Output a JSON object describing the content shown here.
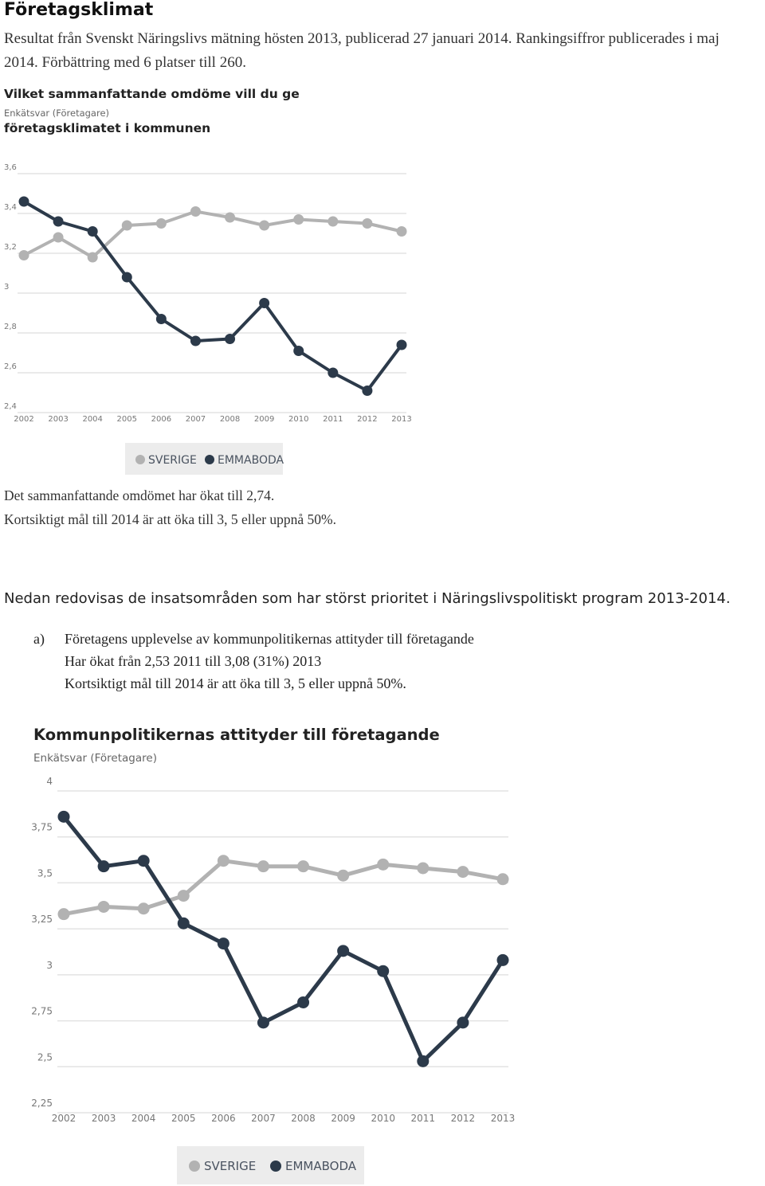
{
  "heading": "Företagsklimat",
  "intro": "Resultat från Svenskt Näringslivs mätning hösten 2013, publicerad 27 januari 2014. Rankingsiffror publicerades i maj 2014. Förbättring med 6 platser till 260.",
  "summary": {
    "line1": "Det sammanfattande omdömet har ökat till 2,74.",
    "line2": "Kortsiktigt mål till 2014 är att öka till 3, 5 eller uppnå 50%."
  },
  "priority_intro": "Nedan redovisas de insatsområden som har störst prioritet i Näringslivspolitiskt program 2013-2014.",
  "item_a": {
    "letter": "a)",
    "line1": "Företagens upplevelse av kommunpolitikernas attityder till företagande",
    "line2": "Har ökat från 2,53 2011 till 3,08 (31%) 2013",
    "line3": "Kortsiktigt mål till 2014 är att öka till 3, 5 eller uppnå 50%."
  },
  "colors": {
    "sverige": "#b2b2b2",
    "emmaboda": "#2c3a4a",
    "grid": "#e3e3e3",
    "legend_bg": "#ececec"
  },
  "chart_data": [
    {
      "type": "line",
      "title_line1": "Vilket sammanfattande omdöme vill du ge",
      "subtitle": "Enkätsvar (Företagare)",
      "title_line2": "företagsklimatet i kommunen",
      "x": [
        "2002",
        "2003",
        "2004",
        "2005",
        "2006",
        "2007",
        "2008",
        "2009",
        "2010",
        "2011",
        "2012",
        "2013"
      ],
      "ylim": [
        2.4,
        3.6
      ],
      "yticks": [
        "2,4",
        "2,6",
        "2,8",
        "3",
        "3,2",
        "3,4",
        "3,6"
      ],
      "grid": true,
      "legend": "bottom-center",
      "series": [
        {
          "name": "SVERIGE",
          "values": [
            3.19,
            3.28,
            3.18,
            3.34,
            3.35,
            3.41,
            3.38,
            3.34,
            3.37,
            3.36,
            3.35,
            3.31
          ]
        },
        {
          "name": "EMMABODA",
          "values": [
            3.46,
            3.36,
            3.31,
            3.08,
            2.87,
            2.76,
            2.77,
            2.95,
            2.71,
            2.6,
            2.51,
            2.74
          ]
        }
      ]
    },
    {
      "type": "line",
      "title": "Kommunpolitikernas attityder till företagande",
      "subtitle": "Enkätsvar (Företagare)",
      "x": [
        "2002",
        "2003",
        "2004",
        "2005",
        "2006",
        "2007",
        "2008",
        "2009",
        "2010",
        "2011",
        "2012",
        "2013"
      ],
      "ylim": [
        2.25,
        4
      ],
      "yticks": [
        "2,25",
        "2,5",
        "2,75",
        "3",
        "3,25",
        "3,5",
        "3,75",
        "4"
      ],
      "grid": true,
      "legend": "bottom-center",
      "series": [
        {
          "name": "SVERIGE",
          "values": [
            3.33,
            3.37,
            3.36,
            3.43,
            3.62,
            3.59,
            3.59,
            3.54,
            3.6,
            3.58,
            3.56,
            3.52
          ]
        },
        {
          "name": "EMMABODA",
          "values": [
            3.86,
            3.59,
            3.62,
            3.28,
            3.17,
            2.74,
            2.85,
            3.13,
            3.02,
            2.53,
            2.74,
            3.08
          ]
        }
      ]
    }
  ]
}
